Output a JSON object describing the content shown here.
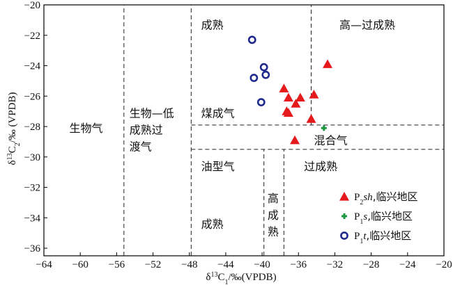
{
  "chart_data": {
    "type": "scatter",
    "xlabel_parts": {
      "delta": "δ",
      "sup": "13",
      "c": "C",
      "sub": "1",
      "unit": "/‰(VPDB)"
    },
    "ylabel_parts": {
      "delta": "δ",
      "sup": "13",
      "c": "C",
      "sub": "2",
      "unit": "/‰ (VPDB)"
    },
    "xlim": [
      -64,
      -20
    ],
    "ylim": [
      -36.5,
      -20
    ],
    "xticks": [
      -64,
      -60,
      -56,
      -52,
      -48,
      -44,
      -40,
      -36,
      -32,
      -28,
      -24,
      -20
    ],
    "yticks": [
      -20,
      -22,
      -24,
      -26,
      -28,
      -30,
      -32,
      -34,
      -36
    ],
    "grid": false,
    "legend_position": "bottom-right",
    "divider_lines": [
      {
        "x1": -55.2,
        "y1": -36.5,
        "x2": -55.2,
        "y2": -20
      },
      {
        "x1": -47.8,
        "y1": -36.5,
        "x2": -47.8,
        "y2": -20
      },
      {
        "x1": -34.6,
        "y1": -27.9,
        "x2": -34.6,
        "y2": -20
      },
      {
        "x1": -47.8,
        "y1": -27.9,
        "x2": -20,
        "y2": -27.9
      },
      {
        "x1": -47.8,
        "y1": -29.5,
        "x2": -20,
        "y2": -29.5
      },
      {
        "x1": -39.8,
        "y1": -36.5,
        "x2": -39.8,
        "y2": -29.5
      },
      {
        "x1": -37.6,
        "y1": -36.5,
        "x2": -37.6,
        "y2": -29.5
      }
    ],
    "regions": [
      {
        "label": "成熟",
        "x": -46.7,
        "y": -21.3
      },
      {
        "label": "高—过成熟",
        "x": -31.5,
        "y": -21.3
      },
      {
        "label": "生物气",
        "x": -61.2,
        "y": -28.1
      },
      {
        "label": "生物—低",
        "x": -54.6,
        "y": -27.1
      },
      {
        "label": "成熟过",
        "x": -54.6,
        "y": -28.2
      },
      {
        "label": "渡气",
        "x": -54.6,
        "y": -29.3
      },
      {
        "label": "煤成气",
        "x": -46.7,
        "y": -27.1
      },
      {
        "label": "混合气",
        "x": -34.3,
        "y": -28.9
      },
      {
        "label": "油型气",
        "x": -46.7,
        "y": -30.6
      },
      {
        "label": "过成熟",
        "x": -35.4,
        "y": -30.6
      },
      {
        "label": "成熟",
        "x": -46.7,
        "y": -34.4
      },
      {
        "label": "高",
        "x": -39.4,
        "y": -32.7
      },
      {
        "label": "成",
        "x": -39.4,
        "y": -33.8
      },
      {
        "label": "熟",
        "x": -39.4,
        "y": -34.9
      }
    ],
    "series": [
      {
        "legend": {
          "main": "P",
          "sub": "2",
          "formation": "sh",
          "suffix": ",临兴地区"
        },
        "marker": "triangle",
        "color": "#e41a1c",
        "points": [
          {
            "x": -32.8,
            "y": -23.9
          },
          {
            "x": -37.6,
            "y": -25.5
          },
          {
            "x": -37.1,
            "y": -26.1
          },
          {
            "x": -34.3,
            "y": -25.9
          },
          {
            "x": -35.8,
            "y": -26.1
          },
          {
            "x": -36.3,
            "y": -26.5
          },
          {
            "x": -37.1,
            "y": -27.1
          },
          {
            "x": -37.3,
            "y": -27.0
          },
          {
            "x": -34.6,
            "y": -27.5
          },
          {
            "x": -36.4,
            "y": -28.9
          }
        ]
      },
      {
        "legend": {
          "main": "P",
          "sub": "1",
          "formation": "s",
          "suffix": ",临兴地区"
        },
        "marker": "cross",
        "color": "#1a9641",
        "points": [
          {
            "x": -33.2,
            "y": -28.1
          }
        ]
      },
      {
        "legend": {
          "main": "P",
          "sub": "1",
          "formation": "t",
          "suffix": ",临兴地区"
        },
        "marker": "circle",
        "color": "#1f2a8c",
        "points": [
          {
            "x": -41.1,
            "y": -22.3
          },
          {
            "x": -39.8,
            "y": -24.1
          },
          {
            "x": -39.6,
            "y": -24.6
          },
          {
            "x": -40.9,
            "y": -24.8
          },
          {
            "x": -40.1,
            "y": -26.4
          }
        ]
      }
    ]
  }
}
